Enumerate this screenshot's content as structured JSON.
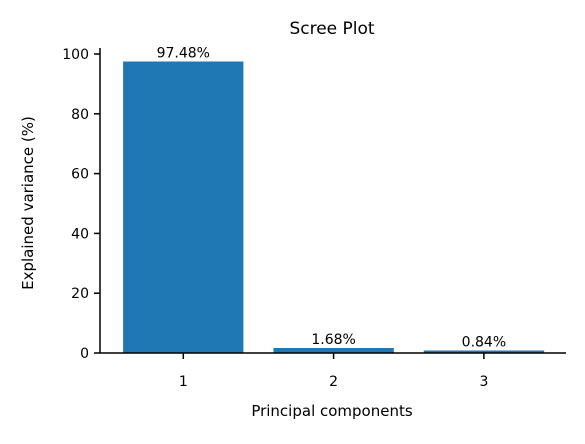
{
  "chart_data": {
    "type": "bar",
    "title": "Scree Plot",
    "xlabel": "Principal components",
    "ylabel": "Explained variance (%)",
    "categories": [
      "1",
      "2",
      "3"
    ],
    "values": [
      97.48,
      1.68,
      0.84
    ],
    "data_labels": [
      "97.48%",
      "1.68%",
      "0.84%"
    ],
    "ylim": [
      0,
      102
    ],
    "yticks": [
      0,
      20,
      40,
      60,
      80,
      100
    ],
    "grid": false,
    "legend": "none",
    "bar_color": "#1f77b4"
  }
}
